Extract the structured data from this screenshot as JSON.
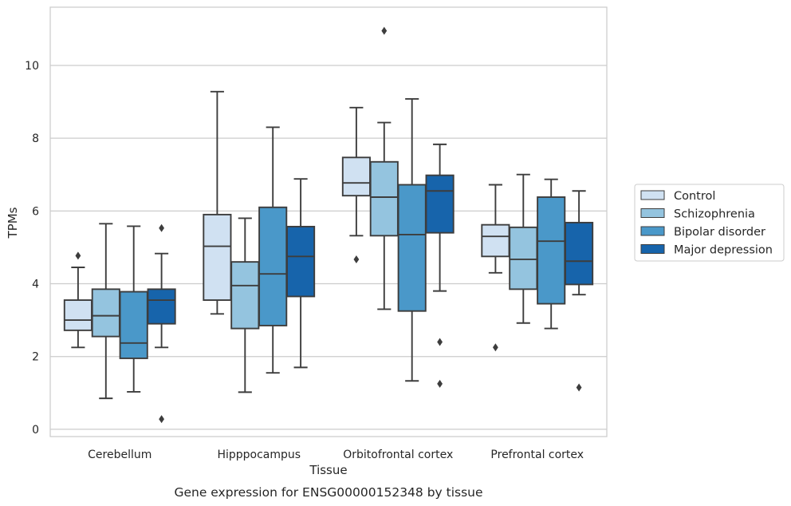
{
  "chart_data": {
    "type": "box",
    "xlabel": "Tissue",
    "ylabel": "TPMs",
    "caption": "Gene expression for ENSG00000152348 by tissue",
    "ylim": [
      -0.2,
      11.6
    ],
    "yticks": [
      0,
      2,
      4,
      6,
      8,
      10
    ],
    "grid": "horizontal",
    "legend_placement": "right",
    "categories": [
      "Cerebellum",
      "Hipppocampus",
      "Orbitofrontal cortex",
      "Prefrontal cortex"
    ],
    "series": [
      {
        "name": "Control",
        "color": "#d0e1f2",
        "boxes": [
          {
            "whisker_low": 2.25,
            "q1": 2.72,
            "median": 3.0,
            "q3": 3.55,
            "whisker_high": 4.45,
            "outliers": [
              4.77
            ]
          },
          {
            "whisker_low": 3.17,
            "q1": 3.55,
            "median": 5.03,
            "q3": 5.9,
            "whisker_high": 9.28,
            "outliers": []
          },
          {
            "whisker_low": 5.32,
            "q1": 6.42,
            "median": 6.77,
            "q3": 7.47,
            "whisker_high": 8.84,
            "outliers": [
              4.67
            ]
          },
          {
            "whisker_low": 4.3,
            "q1": 4.75,
            "median": 5.3,
            "q3": 5.62,
            "whisker_high": 6.72,
            "outliers": [
              2.25
            ]
          }
        ]
      },
      {
        "name": "Schizophrenia",
        "color": "#94c4df",
        "boxes": [
          {
            "whisker_low": 0.85,
            "q1": 2.55,
            "median": 3.12,
            "q3": 3.85,
            "whisker_high": 5.65,
            "outliers": []
          },
          {
            "whisker_low": 1.02,
            "q1": 2.77,
            "median": 3.95,
            "q3": 4.6,
            "whisker_high": 5.8,
            "outliers": []
          },
          {
            "whisker_low": 3.3,
            "q1": 5.32,
            "median": 6.38,
            "q3": 7.35,
            "whisker_high": 8.43,
            "outliers": [
              10.95
            ]
          },
          {
            "whisker_low": 2.92,
            "q1": 3.85,
            "median": 4.67,
            "q3": 5.55,
            "whisker_high": 7.0,
            "outliers": []
          }
        ]
      },
      {
        "name": "Bipolar disorder",
        "color": "#4a98c9",
        "boxes": [
          {
            "whisker_low": 1.03,
            "q1": 1.95,
            "median": 2.37,
            "q3": 3.78,
            "whisker_high": 5.58,
            "outliers": []
          },
          {
            "whisker_low": 1.55,
            "q1": 2.85,
            "median": 4.27,
            "q3": 6.1,
            "whisker_high": 8.3,
            "outliers": []
          },
          {
            "whisker_low": 1.33,
            "q1": 3.25,
            "median": 5.35,
            "q3": 6.72,
            "whisker_high": 9.08,
            "outliers": []
          },
          {
            "whisker_low": 2.77,
            "q1": 3.45,
            "median": 5.17,
            "q3": 6.38,
            "whisker_high": 6.87,
            "outliers": []
          }
        ]
      },
      {
        "name": "Major depression",
        "color": "#1764ab",
        "boxes": [
          {
            "whisker_low": 2.25,
            "q1": 2.9,
            "median": 3.55,
            "q3": 3.85,
            "whisker_high": 4.83,
            "outliers": [
              5.53,
              0.28
            ]
          },
          {
            "whisker_low": 1.7,
            "q1": 3.65,
            "median": 4.75,
            "q3": 5.57,
            "whisker_high": 6.88,
            "outliers": []
          },
          {
            "whisker_low": 3.8,
            "q1": 5.4,
            "median": 6.55,
            "q3": 6.98,
            "whisker_high": 7.83,
            "outliers": [
              2.4,
              1.25
            ]
          },
          {
            "whisker_low": 3.7,
            "q1": 3.98,
            "median": 4.62,
            "q3": 5.68,
            "whisker_high": 6.55,
            "outliers": [
              1.15
            ]
          }
        ]
      }
    ]
  }
}
